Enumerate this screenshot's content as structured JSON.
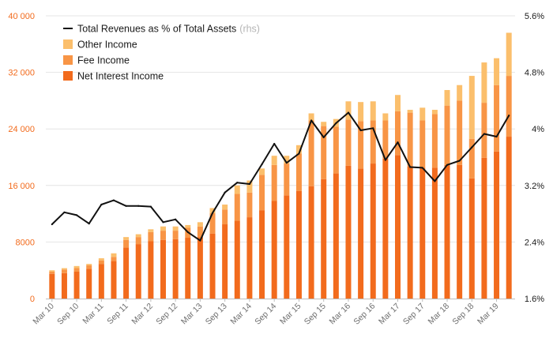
{
  "chart_data": {
    "type": "bar",
    "stacked": true,
    "categories": [
      "Mar 10",
      "Jun 10",
      "Sep 10",
      "Dec 10",
      "Mar 11",
      "Jun 11",
      "Sep 11",
      "Dec 11",
      "Mar 12",
      "Jun 12",
      "Sep 12",
      "Dec 12",
      "Mar 13",
      "Jun 13",
      "Sep 13",
      "Dec 13",
      "Mar 14",
      "Jun 14",
      "Sep 14",
      "Dec 14",
      "Mar 15",
      "Jun 15",
      "Sep 15",
      "Dec 15",
      "Mar 16",
      "Jun 16",
      "Sep 16",
      "Dec 16",
      "Mar 17",
      "Jun 17",
      "Sep 17",
      "Dec 17",
      "Mar 18",
      "Jun 18",
      "Sep 18",
      "Dec 18",
      "Mar 19",
      "Jun 19"
    ],
    "x_tick_labels": [
      "Mar 10",
      "Sep 10",
      "Mar 11",
      "Sep 11",
      "Mar 12",
      "Sep 12",
      "Mar 13",
      "Sep 13",
      "Mar 14",
      "Sep 14",
      "Mar 15",
      "Sep 15",
      "Mar 16",
      "Sep 16",
      "Mar 17",
      "Sep 17",
      "Mar 18",
      "Sep 18",
      "Mar 19"
    ],
    "series": [
      {
        "name": "Net Interest Income",
        "color": "#f26b1d",
        "axis": "left",
        "values": [
          3500,
          3600,
          3800,
          4200,
          4900,
          5300,
          7200,
          7700,
          8100,
          8300,
          8400,
          8600,
          8700,
          9200,
          10500,
          11000,
          11500,
          12500,
          13800,
          14600,
          15200,
          15900,
          16900,
          17700,
          18800,
          18400,
          19100,
          19800,
          20300,
          18700,
          18500,
          18500,
          18900,
          18900,
          17000,
          19900,
          20800,
          22900
        ]
      },
      {
        "name": "Fee Income",
        "color": "#f89546",
        "axis": "left",
        "values": [
          300,
          500,
          500,
          500,
          500,
          600,
          1100,
          1000,
          1300,
          1300,
          1200,
          1400,
          1500,
          2900,
          2100,
          3800,
          3500,
          5000,
          5100,
          4500,
          5300,
          9300,
          7500,
          6600,
          6500,
          6700,
          6100,
          5400,
          6200,
          7600,
          6700,
          7600,
          8400,
          9100,
          5600,
          7800,
          9400,
          8600
        ]
      },
      {
        "name": "Other Income",
        "color": "#fbbf6c",
        "axis": "left",
        "values": [
          200,
          200,
          300,
          200,
          300,
          500,
          400,
          400,
          400,
          600,
          600,
          400,
          600,
          700,
          700,
          1200,
          1700,
          900,
          1300,
          1100,
          1200,
          1000,
          600,
          1100,
          2600,
          2700,
          2700,
          1000,
          2300,
          400,
          1800,
          600,
          2200,
          2200,
          8900,
          5700,
          3800,
          6100
        ]
      },
      {
        "name": "Total Revenues as % of Total Assets",
        "color": "#111111",
        "axis": "right",
        "type": "line",
        "values": [
          2.65,
          2.82,
          2.78,
          2.66,
          2.93,
          2.99,
          2.91,
          2.91,
          2.9,
          2.68,
          2.72,
          2.54,
          2.42,
          2.81,
          3.1,
          3.24,
          3.22,
          3.5,
          3.79,
          3.52,
          3.65,
          4.12,
          3.88,
          4.08,
          4.23,
          3.98,
          4.01,
          3.56,
          3.81,
          3.46,
          3.45,
          3.26,
          3.49,
          3.55,
          3.74,
          3.93,
          3.89,
          4.19
        ]
      }
    ],
    "y_left": {
      "ylim": [
        0,
        40000
      ],
      "ticks": [
        "0",
        "8000",
        "16 000",
        "24 000",
        "32 000",
        "40 000"
      ]
    },
    "y_right": {
      "ylim": [
        1.6,
        5.6
      ],
      "ticks": [
        "1.6%",
        "2.4%",
        "3.2%",
        "4%",
        "4.8%",
        "5.6%"
      ]
    },
    "legend": {
      "placement": "top-left",
      "items": [
        {
          "label": "Total Revenues as % of Total Assets",
          "note": "(rhs)",
          "marker": "line",
          "color": "#111111"
        },
        {
          "label": "Other Income",
          "marker": "box",
          "color": "#fbbf6c"
        },
        {
          "label": "Fee Income",
          "marker": "box",
          "color": "#f89546"
        },
        {
          "label": "Net Interest Income",
          "marker": "box",
          "color": "#f26b1d"
        }
      ]
    },
    "grid": "horizontal",
    "title": "",
    "xlabel": "",
    "ylabel": ""
  }
}
